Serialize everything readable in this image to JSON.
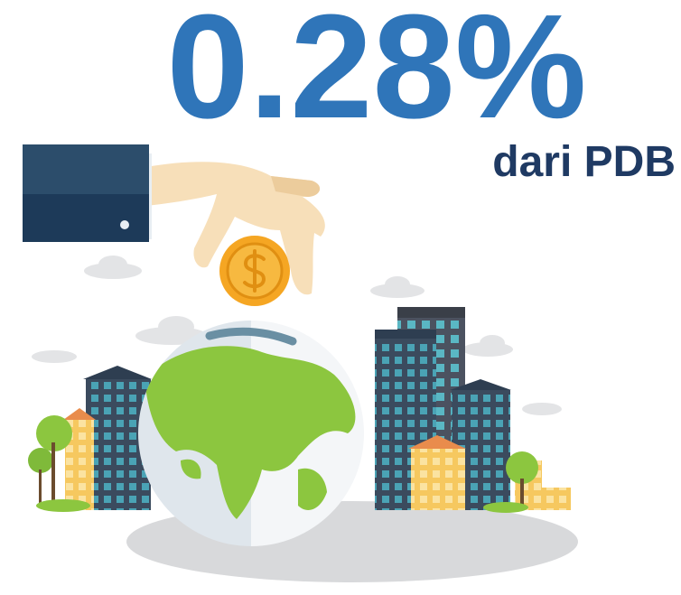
{
  "headline": {
    "value": "0.28%",
    "caption": "dari PDB"
  }
}
